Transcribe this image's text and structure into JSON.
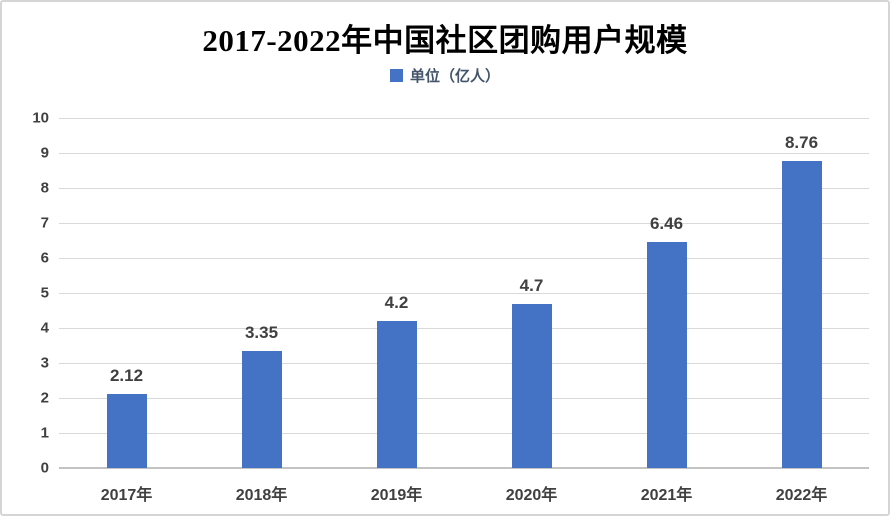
{
  "title": "2017-2022年中国社区团购用户规模",
  "legend": {
    "label": "单位（亿人）",
    "swatch_color": "#4472C4"
  },
  "chart_data": {
    "type": "bar",
    "title": "2017-2022年中国社区团购用户规模",
    "legend": [
      "单位（亿人）"
    ],
    "legend_position": "top",
    "categories": [
      "2017年",
      "2018年",
      "2019年",
      "2020年",
      "2021年",
      "2022年"
    ],
    "values": [
      2.12,
      3.35,
      4.2,
      4.7,
      6.46,
      8.76
    ],
    "data_labels": [
      "2.12",
      "3.35",
      "4.2",
      "4.7",
      "6.46",
      "8.76"
    ],
    "xlabel": "",
    "ylabel": "",
    "ylim": [
      0,
      10
    ],
    "yticks": [
      0,
      1,
      2,
      3,
      4,
      5,
      6,
      7,
      8,
      9,
      10
    ],
    "grid": true,
    "bar_color": "#4472C4"
  },
  "colors": {
    "bar": "#4472C4",
    "gridline": "#d9d9d9",
    "axis_line": "#c3c3c3",
    "tick_label": "#404040",
    "data_label": "#404040",
    "legend_text": "#44546A",
    "frame_border": "#d5d5d5",
    "background": "#ffffff"
  }
}
